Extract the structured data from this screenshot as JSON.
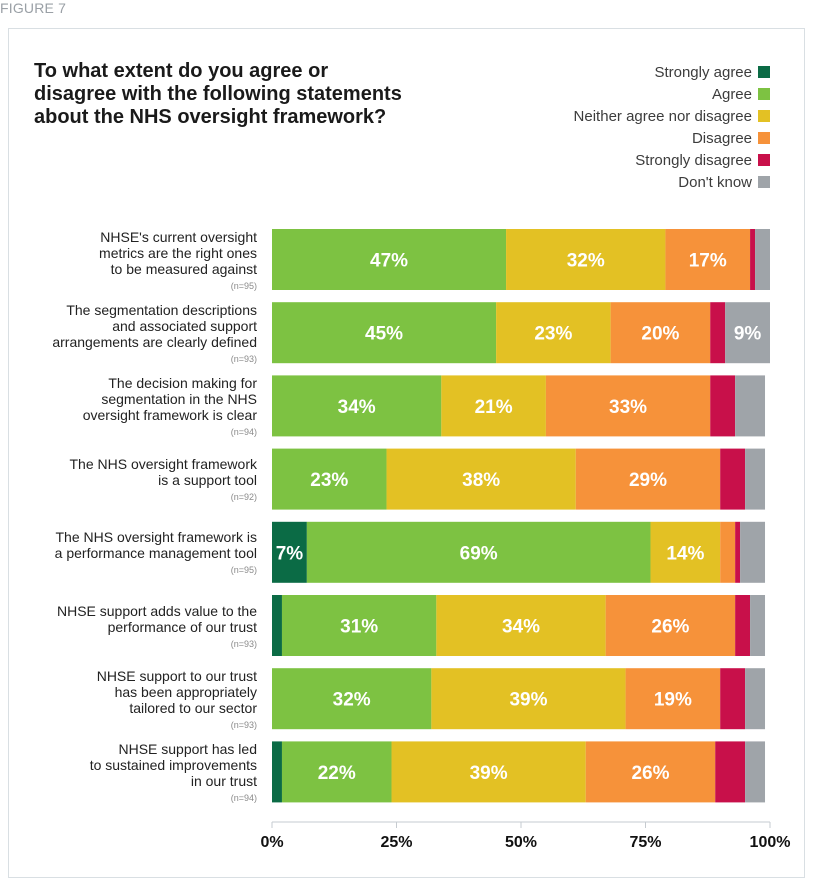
{
  "figure_label": "FIGURE 7",
  "chart_data": {
    "type": "bar",
    "orientation": "horizontal",
    "stacked": true,
    "title": "To what extent do you agree or\ndisagree with the following statements\nabout the NHS oversight framework?",
    "xlim": [
      0,
      100
    ],
    "x_ticks": [
      "0%",
      "25%",
      "50%",
      "75%",
      "100%"
    ],
    "legend_position": "top-right",
    "categories": [
      {
        "label": "NHSE's current oversight\nmetrics are the right ones\nto be measured against",
        "n": "(n=95)"
      },
      {
        "label": "The segmentation descriptions\nand associated support\narrangements are clearly defined",
        "n": "(n=93)"
      },
      {
        "label": "The decision making for\nsegmentation in the NHS\noversight framework is clear",
        "n": "(n=94)"
      },
      {
        "label": "The NHS oversight framework\nis a support tool",
        "n": "(n=92)"
      },
      {
        "label": "The NHS oversight framework is\na performance management tool",
        "n": "(n=95)"
      },
      {
        "label": "NHSE support adds value to the\nperformance of our trust",
        "n": "(n=93)"
      },
      {
        "label": "NHSE support to our trust\nhas been appropriately\ntailored to our sector",
        "n": "(n=93)"
      },
      {
        "label": "NHSE support has led\nto sustained improvements\nin our trust",
        "n": "(n=94)"
      }
    ],
    "series": [
      {
        "name": "Strongly agree",
        "color": "#0b6b45",
        "values": [
          0,
          0,
          0,
          0,
          7,
          2,
          0,
          2
        ],
        "labels": [
          "",
          "",
          "",
          "",
          "7%",
          "",
          "",
          ""
        ]
      },
      {
        "name": "Agree",
        "color": "#7dc242",
        "values": [
          47,
          45,
          34,
          23,
          69,
          31,
          32,
          22
        ],
        "labels": [
          "47%",
          "45%",
          "34%",
          "23%",
          "69%",
          "31%",
          "32%",
          "22%"
        ]
      },
      {
        "name": "Neither agree nor disagree",
        "color": "#e3c124",
        "values": [
          32,
          23,
          21,
          38,
          14,
          34,
          39,
          39
        ],
        "labels": [
          "32%",
          "23%",
          "21%",
          "38%",
          "14%",
          "34%",
          "39%",
          "39%"
        ]
      },
      {
        "name": "Disagree",
        "color": "#f6923a",
        "values": [
          17,
          20,
          33,
          29,
          3,
          26,
          19,
          26
        ],
        "labels": [
          "17%",
          "20%",
          "33%",
          "29%",
          "",
          "26%",
          "19%",
          "26%"
        ]
      },
      {
        "name": "Strongly disagree",
        "color": "#c8104a",
        "values": [
          1,
          3,
          5,
          5,
          1,
          3,
          5,
          6
        ],
        "labels": [
          "",
          "",
          "",
          "",
          "",
          "",
          "",
          ""
        ]
      },
      {
        "name": "Don't know",
        "color": "#9fa4a9",
        "values": [
          3,
          9,
          6,
          4,
          5,
          3,
          4,
          4
        ],
        "labels": [
          "",
          "9%",
          "",
          "",
          "",
          "",
          "",
          ""
        ]
      }
    ]
  }
}
